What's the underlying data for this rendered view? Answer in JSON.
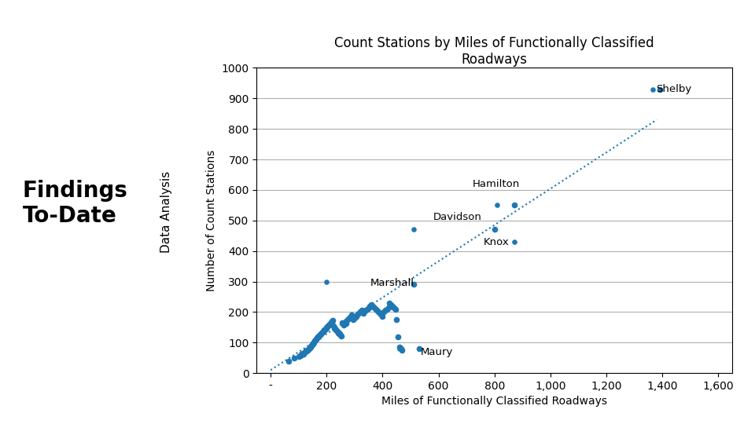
{
  "chart_data": {
    "type": "scatter",
    "title": "Count Stations by Miles of Functionally Classified\nRoadways",
    "x_label": "Miles of Functionally Classified Roadways",
    "y_label": "Number of Count Stations",
    "panel_texts": [
      "Findings\nTo-Date",
      "Data Analysis"
    ],
    "xlim": [
      -50,
      1650
    ],
    "ylim": [
      0,
      1000
    ],
    "xticks": [
      {
        "value": 0,
        "label": "-"
      },
      200,
      400,
      600,
      800,
      {
        "value": 1000,
        "label": "1,000"
      },
      {
        "value": 1200,
        "label": "1,200"
      },
      {
        "value": 1400,
        "label": "1,400"
      },
      {
        "value": 1600,
        "label": "1,600"
      }
    ],
    "yticks": [
      0,
      100,
      200,
      300,
      400,
      500,
      600,
      700,
      800,
      900,
      1000
    ],
    "grid": "y",
    "series": [
      {
        "type": "scatter",
        "marker": "o",
        "x": [
          65,
          85,
          100,
          105,
          108,
          110,
          115,
          118,
          120,
          122,
          125,
          128,
          130,
          132,
          135,
          138,
          140,
          142,
          143,
          145,
          148,
          150,
          152,
          153,
          155,
          158,
          160,
          162,
          163,
          165,
          168,
          170,
          172,
          175,
          178,
          180,
          182,
          185,
          188,
          190,
          192,
          195,
          198,
          200,
          202,
          205,
          208,
          210,
          212,
          215,
          218,
          220,
          222,
          225,
          228,
          230,
          232,
          235,
          238,
          240,
          242,
          245,
          248,
          250,
          252,
          255,
          258,
          260,
          262,
          265,
          268,
          270,
          275,
          280,
          285,
          290,
          295,
          300,
          305,
          310,
          315,
          320,
          325,
          330,
          335,
          340,
          345,
          350,
          355,
          360,
          365,
          370,
          375,
          380,
          385,
          390,
          395,
          400,
          405,
          410,
          415,
          420,
          425,
          430,
          435,
          440,
          445,
          450,
          455,
          460,
          465,
          470,
          510,
          530,
          800,
          870,
          1390
        ],
        "values": [
          40,
          50,
          55,
          58,
          60,
          62,
          65,
          62,
          68,
          70,
          72,
          75,
          72,
          75,
          78,
          80,
          82,
          85,
          88,
          90,
          92,
          95,
          98,
          100,
          102,
          105,
          108,
          110,
          112,
          115,
          118,
          120,
          122,
          125,
          128,
          130,
          132,
          135,
          138,
          140,
          142,
          145,
          148,
          150,
          152,
          155,
          158,
          160,
          162,
          165,
          168,
          170,
          172,
          155,
          148,
          145,
          142,
          140,
          138,
          135,
          132,
          130,
          128,
          125,
          122,
          165,
          162,
          160,
          158,
          165,
          162,
          170,
          175,
          180,
          185,
          190,
          175,
          180,
          185,
          190,
          195,
          200,
          205,
          195,
          200,
          205,
          210,
          215,
          220,
          225,
          220,
          215,
          210,
          205,
          200,
          195,
          190,
          185,
          200,
          205,
          210,
          215,
          230,
          225,
          220,
          215,
          210,
          175,
          120,
          85,
          80,
          75,
          290,
          80,
          470,
          550,
          930
        ]
      },
      {
        "type": "line",
        "line_style": "dotted",
        "x": [
          0,
          1380
        ],
        "values": [
          10,
          830
        ]
      }
    ],
    "annotations": [
      {
        "text": "Shelby",
        "x": 1378,
        "y": 930,
        "point_x": 1365,
        "point_y": 930
      },
      {
        "text": "Hamilton",
        "x": 720,
        "y": 620,
        "point_x": 810,
        "point_y": 550
      },
      {
        "text": "Davidson",
        "x": 580,
        "y": 510,
        "point_x": 510,
        "point_y": 470
      },
      {
        "text": "Knox",
        "x": 760,
        "y": 430,
        "point_x": 870,
        "point_y": 430
      },
      {
        "text": "Marshall",
        "x": 355,
        "y": 295,
        "point_x": 200,
        "point_y": 300
      },
      {
        "text": "Maury",
        "x": 535,
        "y": 68,
        "point_x": 460,
        "point_y": 80
      }
    ]
  }
}
